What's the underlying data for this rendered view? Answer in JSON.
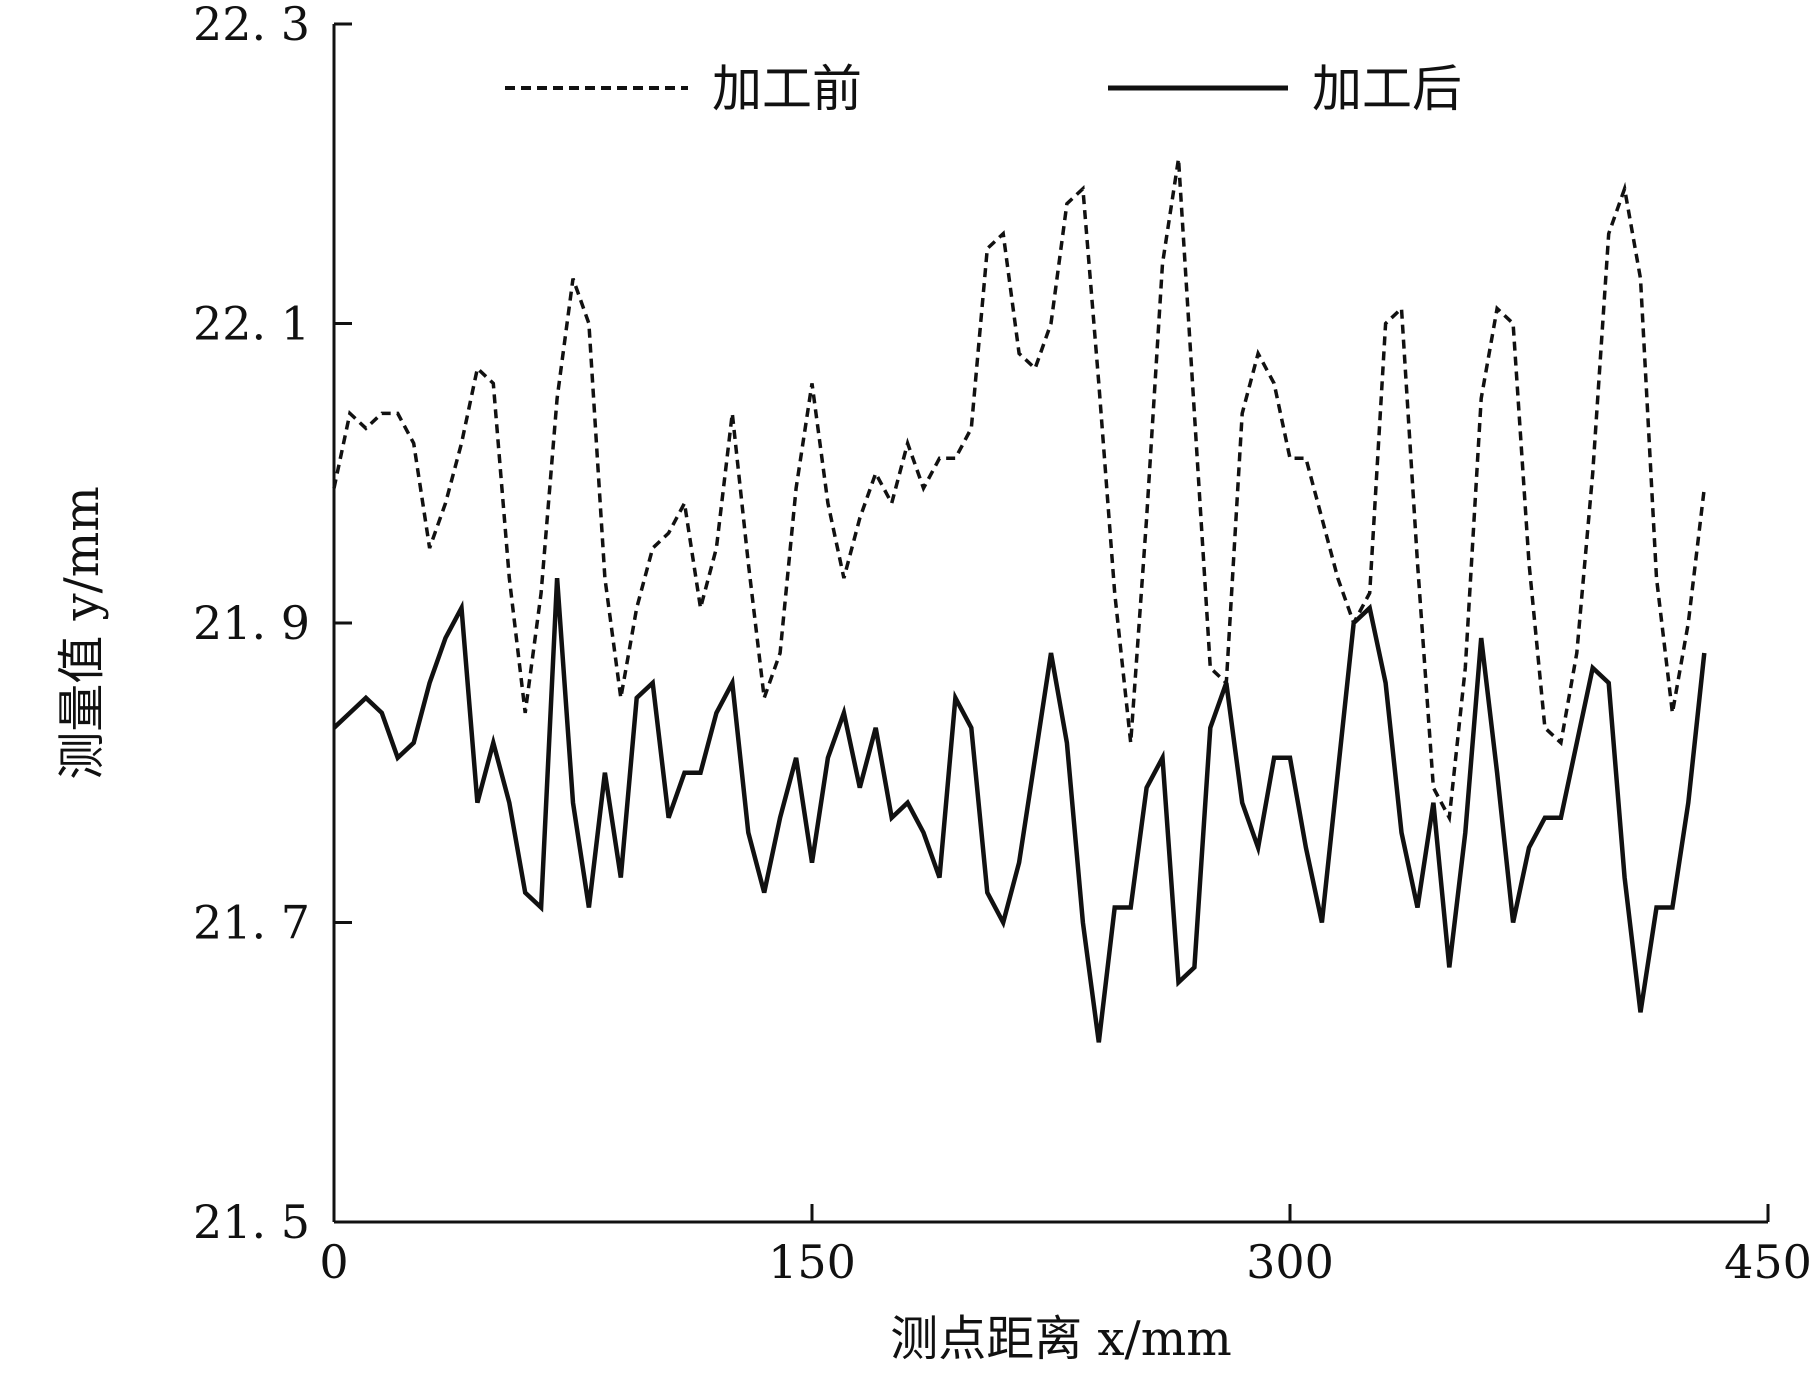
{
  "chart_data": {
    "type": "line",
    "title": "",
    "xlabel": "测点距离 x/mm",
    "ylabel": "测量值 y/mm",
    "xlim": [
      0,
      450
    ],
    "ylim": [
      21.5,
      22.3
    ],
    "x_ticks": [
      0,
      150,
      300,
      450
    ],
    "x_tick_labels": [
      "0",
      "150",
      "300",
      "450"
    ],
    "y_ticks": [
      21.5,
      21.7,
      21.9,
      22.1,
      22.3
    ],
    "y_tick_labels": [
      "21. 5",
      "21. 7",
      "21. 9",
      "22. 1",
      "22. 3"
    ],
    "grid": false,
    "legend_position": "top",
    "x": [
      0,
      5,
      10,
      15,
      20,
      25,
      30,
      35,
      40,
      45,
      50,
      55,
      60,
      65,
      70,
      75,
      80,
      85,
      90,
      95,
      100,
      105,
      110,
      115,
      120,
      125,
      130,
      135,
      140,
      145,
      150,
      155,
      160,
      165,
      170,
      175,
      180,
      185,
      190,
      195,
      200,
      205,
      210,
      215,
      220,
      225,
      230,
      235,
      240,
      245,
      250,
      255,
      260,
      265,
      270,
      275,
      280,
      285,
      290,
      295,
      300,
      305,
      310,
      315,
      320,
      325,
      330,
      335,
      340,
      345,
      350,
      355,
      360,
      365,
      370,
      375,
      380,
      385,
      390,
      395,
      400,
      405,
      410,
      415,
      420,
      425,
      430
    ],
    "series": [
      {
        "name": "加工前",
        "style": "dashed",
        "color": "#111111",
        "values": [
          21.99,
          22.04,
          22.03,
          22.04,
          22.04,
          22.02,
          21.95,
          21.98,
          22.02,
          22.07,
          22.06,
          21.93,
          21.84,
          21.92,
          22.05,
          22.13,
          22.1,
          21.93,
          21.85,
          21.91,
          21.95,
          21.96,
          21.98,
          21.91,
          21.95,
          22.04,
          21.94,
          21.85,
          21.88,
          21.99,
          22.06,
          21.98,
          21.93,
          21.97,
          22.0,
          21.98,
          22.02,
          21.99,
          22.01,
          22.01,
          22.03,
          22.15,
          22.16,
          22.08,
          22.07,
          22.1,
          22.18,
          22.19,
          22.06,
          21.92,
          21.82,
          21.97,
          22.14,
          22.21,
          22.04,
          21.87,
          21.86,
          22.04,
          22.08,
          22.06,
          22.01,
          22.01,
          21.97,
          21.93,
          21.9,
          21.92,
          22.1,
          22.11,
          21.94,
          21.79,
          21.77,
          21.87,
          22.05,
          22.11,
          22.1,
          21.94,
          21.83,
          21.82,
          21.88,
          22.0,
          22.16,
          22.19,
          22.13,
          21.93,
          21.84,
          21.9,
          21.99
        ]
      },
      {
        "name": "加工后",
        "style": "solid",
        "color": "#111111",
        "values": [
          21.83,
          21.84,
          21.85,
          21.84,
          21.81,
          21.82,
          21.86,
          21.89,
          21.91,
          21.78,
          21.82,
          21.78,
          21.72,
          21.71,
          21.93,
          21.78,
          21.71,
          21.8,
          21.73,
          21.85,
          21.86,
          21.77,
          21.8,
          21.8,
          21.84,
          21.86,
          21.76,
          21.72,
          21.77,
          21.81,
          21.74,
          21.81,
          21.84,
          21.79,
          21.83,
          21.77,
          21.78,
          21.76,
          21.73,
          21.85,
          21.83,
          21.72,
          21.7,
          21.74,
          21.81,
          21.88,
          21.82,
          21.7,
          21.62,
          21.71,
          21.71,
          21.79,
          21.81,
          21.66,
          21.67,
          21.83,
          21.86,
          21.78,
          21.75,
          21.81,
          21.81,
          21.75,
          21.7,
          21.8,
          21.9,
          21.91,
          21.86,
          21.76,
          21.71,
          21.78,
          21.67,
          21.76,
          21.89,
          21.8,
          21.7,
          21.75,
          21.77,
          21.77,
          21.82,
          21.87,
          21.86,
          21.73,
          21.64,
          21.71,
          21.71,
          21.78,
          21.88
        ]
      }
    ]
  }
}
